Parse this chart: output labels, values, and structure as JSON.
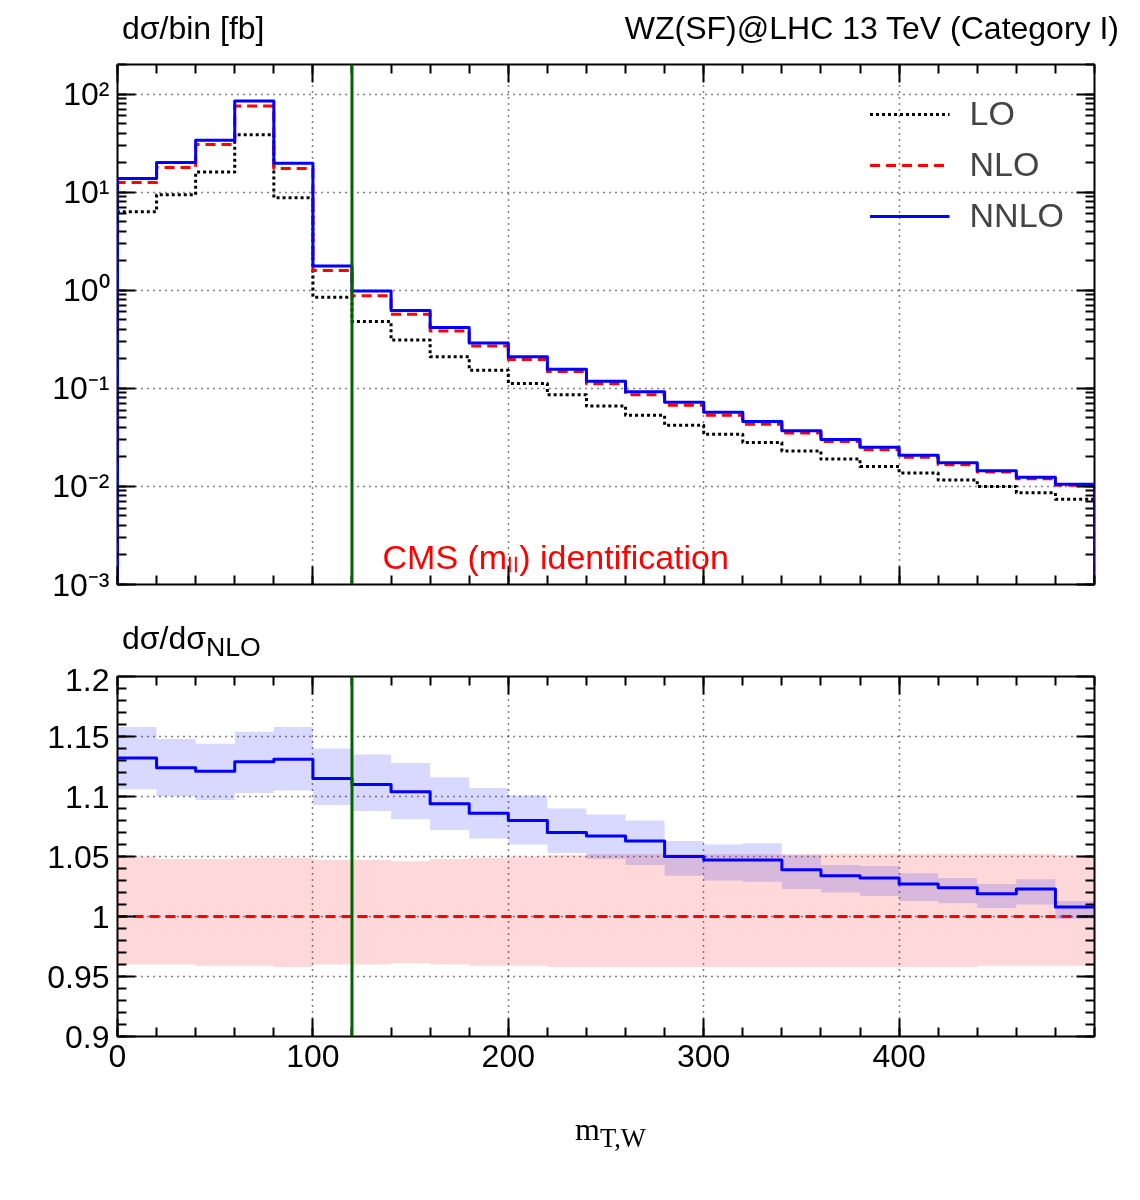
{
  "chart_data": [
    {
      "type": "histogram",
      "title": "WZ(SF)@LHC 13 TeV (Category I)",
      "ylabel": "dσ/bin [fb]",
      "log": true,
      "grid": true,
      "legend": "top right",
      "tick_labels": "y",
      "annotations": [
        "CMS (mₗₗ) identification"
      ],
      "bins": [
        0,
        20,
        40,
        60,
        80,
        100,
        120,
        140,
        160,
        180,
        200,
        220,
        240,
        260,
        280,
        300,
        320,
        340,
        360,
        380,
        400,
        420,
        440,
        460,
        480,
        500
      ],
      "xlim": [
        0,
        500
      ],
      "xticks": [
        0,
        100,
        200,
        300,
        400
      ],
      "ylim": [
        0.001,
        200
      ],
      "yticks": [
        {
          "value": 0.001,
          "label": "10⁻³"
        },
        {
          "value": 0.01,
          "label": "10⁻²"
        },
        {
          "value": 0.1,
          "label": "10⁻¹"
        },
        {
          "value": 1,
          "label": "10⁰"
        },
        {
          "value": 10,
          "label": "10¹"
        },
        {
          "value": 100,
          "label": "10²"
        }
      ],
      "ref_lines": [
        {
          "axis": "x",
          "value": 120,
          "color": "#006400"
        }
      ],
      "series": [
        {
          "name": "LO",
          "color": "#000000",
          "line_style": "dotted",
          "values": [
            6.3,
            9.4,
            16,
            38.5,
            8.75,
            0.85,
            0.48,
            0.31,
            0.21,
            0.153,
            0.112,
            0.086,
            0.066,
            0.053,
            0.042,
            0.034,
            0.028,
            0.023,
            0.019,
            0.016,
            0.0137,
            0.0116,
            0.01,
            0.0086,
            0.0074
          ]
        },
        {
          "name": "NLO",
          "color": "#ff0000",
          "line_style": "dashed",
          "values": [
            12.5,
            17.8,
            30.6,
            75.3,
            17.4,
            1.59,
            0.88,
            0.57,
            0.385,
            0.27,
            0.197,
            0.148,
            0.111,
            0.086,
            0.067,
            0.053,
            0.043,
            0.035,
            0.0287,
            0.0237,
            0.0198,
            0.0166,
            0.014,
            0.012,
            0.0103
          ]
        },
        {
          "name": "NNLO",
          "color": "#0000ff",
          "line_style": "solid",
          "values": [
            13.8,
            20,
            33.7,
            84.7,
            19.7,
            1.77,
            0.98,
            0.62,
            0.417,
            0.29,
            0.21,
            0.156,
            0.118,
            0.092,
            0.072,
            0.057,
            0.046,
            0.037,
            0.03,
            0.025,
            0.0208,
            0.0174,
            0.0144,
            0.0124,
            0.0105
          ]
        }
      ]
    },
    {
      "type": "step",
      "ylabel": "dσ/dσ$_{NLO}$",
      "xlabel": "m$_{T,W}$",
      "grid": true,
      "x": [
        0,
        20,
        40,
        60,
        80,
        100,
        120,
        140,
        160,
        180,
        200,
        220,
        240,
        260,
        280,
        300,
        320,
        340,
        360,
        380,
        400,
        420,
        440,
        460,
        480,
        500
      ],
      "xlim": [
        0,
        500
      ],
      "xticks": [
        0,
        100,
        200,
        300,
        400
      ],
      "ylim": [
        0.9,
        1.2
      ],
      "yticks": [
        0.9,
        0.95,
        1,
        1.05,
        1.1,
        1.15,
        1.2
      ],
      "ref_lines": [
        {
          "axis": "x",
          "value": 120,
          "color": "#006400"
        }
      ],
      "series": [
        {
          "color": "#ff0000",
          "line_style": "dashed",
          "values": [
            1,
            1,
            1,
            1,
            1,
            1,
            1,
            1,
            1,
            1,
            1,
            1,
            1,
            1,
            1,
            1,
            1,
            1,
            1,
            1,
            1,
            1,
            1,
            1,
            1,
            1
          ],
          "lower": [
            0.96,
            0.96,
            0.959,
            0.959,
            0.958,
            0.96,
            0.96,
            0.961,
            0.96,
            0.959,
            0.959,
            0.958,
            0.958,
            0.958,
            0.958,
            0.958,
            0.958,
            0.958,
            0.958,
            0.958,
            0.958,
            0.958,
            0.959,
            0.959,
            0.959,
            0.959
          ],
          "upper": [
            1.05,
            1.048,
            1.048,
            1.049,
            1.049,
            1.047,
            1.047,
            1.046,
            1.048,
            1.049,
            1.05,
            1.051,
            1.052,
            1.052,
            1.052,
            1.052,
            1.052,
            1.052,
            1.052,
            1.052,
            1.052,
            1.052,
            1.052,
            1.052,
            1.051,
            1.051
          ]
        },
        {
          "color": "#0000ff",
          "line_style": "solid",
          "values": [
            1.132,
            1.124,
            1.121,
            1.129,
            1.131,
            1.115,
            1.11,
            1.104,
            1.094,
            1.086,
            1.08,
            1.07,
            1.067,
            1.063,
            1.05,
            1.047,
            1.047,
            1.039,
            1.034,
            1.032,
            1.027,
            1.024,
            1.019,
            1.023,
            1.008,
            1.008
          ],
          "lower": [
            1.106,
            1.1,
            1.097,
            1.103,
            1.105,
            1.093,
            1.088,
            1.081,
            1.072,
            1.065,
            1.06,
            1.053,
            1.048,
            1.043,
            1.034,
            1.03,
            1.029,
            1.023,
            1.02,
            1.017,
            1.013,
            1.011,
            1.007,
            1.01,
            0.998,
            0.998
          ],
          "upper": [
            1.158,
            1.148,
            1.144,
            1.154,
            1.158,
            1.14,
            1.135,
            1.128,
            1.116,
            1.107,
            1.101,
            1.09,
            1.085,
            1.08,
            1.063,
            1.06,
            1.061,
            1.051,
            1.043,
            1.042,
            1.036,
            1.032,
            1.027,
            1.031,
            1.013,
            1.013
          ]
        }
      ]
    }
  ]
}
